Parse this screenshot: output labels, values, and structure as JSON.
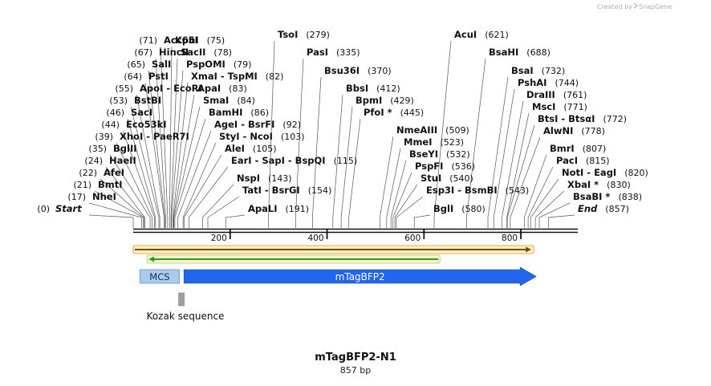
{
  "watermark": {
    "created_by": "Created by",
    "brand": "SnapGene"
  },
  "plasmid": {
    "name": "mTagBFP2-N1",
    "length_label": "857 bp",
    "length": 857
  },
  "sites": [
    {
      "name": "Start",
      "pos": "(0)",
      "bp": 0,
      "italic": true
    },
    {
      "name": "NheI",
      "pos": "(17)",
      "bp": 17
    },
    {
      "name": "BmtI",
      "pos": "(21)",
      "bp": 21
    },
    {
      "name": "AfeI",
      "pos": "(22)",
      "bp": 22
    },
    {
      "name": "HaeII",
      "pos": "(24)",
      "bp": 24
    },
    {
      "name": "BglII",
      "pos": "(35)",
      "bp": 35
    },
    {
      "name": "XhoI - PaeR7I",
      "pos": "(39)",
      "bp": 39
    },
    {
      "name": "Eco53kI",
      "pos": "(44)",
      "bp": 44
    },
    {
      "name": "SacI",
      "pos": "(46)",
      "bp": 46
    },
    {
      "name": "BstBI",
      "pos": "(53)",
      "bp": 53
    },
    {
      "name": "ApoI - EcoRI",
      "pos": "(55)",
      "bp": 55
    },
    {
      "name": "PstI",
      "pos": "(64)",
      "bp": 64
    },
    {
      "name": "SalI",
      "pos": "(65)",
      "bp": 65
    },
    {
      "name": "HincII",
      "pos": "(67)",
      "bp": 67
    },
    {
      "name": "Acc65I",
      "pos": "(71)",
      "bp": 71
    },
    {
      "name": "KpnI",
      "pos": "(75)",
      "bp": 75
    },
    {
      "name": "SacII",
      "pos": "(78)",
      "bp": 78
    },
    {
      "name": "PspOMI",
      "pos": "(79)",
      "bp": 79
    },
    {
      "name": "XmaI - TspMI",
      "pos": "(82)",
      "bp": 82
    },
    {
      "name": "ApaI",
      "pos": "(83)",
      "bp": 83
    },
    {
      "name": "SmaI",
      "pos": "(84)",
      "bp": 84
    },
    {
      "name": "BamHI",
      "pos": "(86)",
      "bp": 86
    },
    {
      "name": "AgeI - BsrFI",
      "pos": "(92)",
      "bp": 92
    },
    {
      "name": "StyI - NcoI",
      "pos": "(103)",
      "bp": 103
    },
    {
      "name": "AleI",
      "pos": "(105)",
      "bp": 105
    },
    {
      "name": "EarI - SapI - BspQI",
      "pos": "(115)",
      "bp": 115
    },
    {
      "name": "NspI",
      "pos": "(143)",
      "bp": 143
    },
    {
      "name": "TatI - BsrGI",
      "pos": "(154)",
      "bp": 154
    },
    {
      "name": "ApaLI",
      "pos": "(191)",
      "bp": 191
    },
    {
      "name": "TsoI",
      "pos": "(279)",
      "bp": 279
    },
    {
      "name": "PasI",
      "pos": "(335)",
      "bp": 335
    },
    {
      "name": "Bsu36I",
      "pos": "(370)",
      "bp": 370
    },
    {
      "name": "BbsI",
      "pos": "(412)",
      "bp": 412
    },
    {
      "name": "BpmI",
      "pos": "(429)",
      "bp": 429
    },
    {
      "name": "PfoI *",
      "pos": "(445)",
      "bp": 445
    },
    {
      "name": "NmeAIII",
      "pos": "(509)",
      "bp": 509
    },
    {
      "name": "MmeI",
      "pos": "(523)",
      "bp": 523
    },
    {
      "name": "BseYI",
      "pos": "(532)",
      "bp": 532
    },
    {
      "name": "PspFI",
      "pos": "(536)",
      "bp": 536
    },
    {
      "name": "StuI",
      "pos": "(540)",
      "bp": 540
    },
    {
      "name": "Esp3I - BsmBI",
      "pos": "(543)",
      "bp": 543
    },
    {
      "name": "BglI",
      "pos": "(580)",
      "bp": 580
    },
    {
      "name": "AcuI",
      "pos": "(621)",
      "bp": 621
    },
    {
      "name": "BsaHI",
      "pos": "(688)",
      "bp": 688
    },
    {
      "name": "BsaI",
      "pos": "(732)",
      "bp": 732
    },
    {
      "name": "PshAI",
      "pos": "(744)",
      "bp": 744
    },
    {
      "name": "DraIII",
      "pos": "(761)",
      "bp": 761
    },
    {
      "name": "MscI",
      "pos": "(771)",
      "bp": 771
    },
    {
      "name": "BtsI - BtsαI",
      "pos": "(772)",
      "bp": 772
    },
    {
      "name": "AlwNI",
      "pos": "(778)",
      "bp": 778
    },
    {
      "name": "BmrI",
      "pos": "(807)",
      "bp": 807
    },
    {
      "name": "PacI",
      "pos": "(815)",
      "bp": 815
    },
    {
      "name": "NotI - EagI",
      "pos": "(820)",
      "bp": 820
    },
    {
      "name": "XbaI *",
      "pos": "(830)",
      "bp": 830
    },
    {
      "name": "BsaBI *",
      "pos": "(838)",
      "bp": 838
    },
    {
      "name": "End",
      "pos": "(857)",
      "bp": 857,
      "italic": true
    }
  ],
  "ruler": [
    {
      "label": "200",
      "bp": 200
    },
    {
      "label": "400",
      "bp": 400
    },
    {
      "label": "600",
      "bp": 600
    },
    {
      "label": "800",
      "bp": 800
    }
  ],
  "features": {
    "mcs": {
      "label": "MCS",
      "start": 17,
      "end": 92
    },
    "cds": {
      "label": "mTagBFP2",
      "start": 103,
      "end": 820
    },
    "kozak": {
      "label": "Kozak sequence",
      "start": 97,
      "end": 103
    },
    "orf_forward": {
      "start": 0,
      "end": 820
    },
    "orf_reverse": {
      "start": 35,
      "end": 633
    }
  },
  "colors": {
    "cds": "#2266ee",
    "mcs": "#a8ccee",
    "kozak": "#a0a0a0",
    "orf_forward": "#f08a1a",
    "orf_reverse": "#2e9a2e",
    "orf_fill": "#fbf3c4",
    "ruler": "#111111",
    "line": "#555555"
  }
}
